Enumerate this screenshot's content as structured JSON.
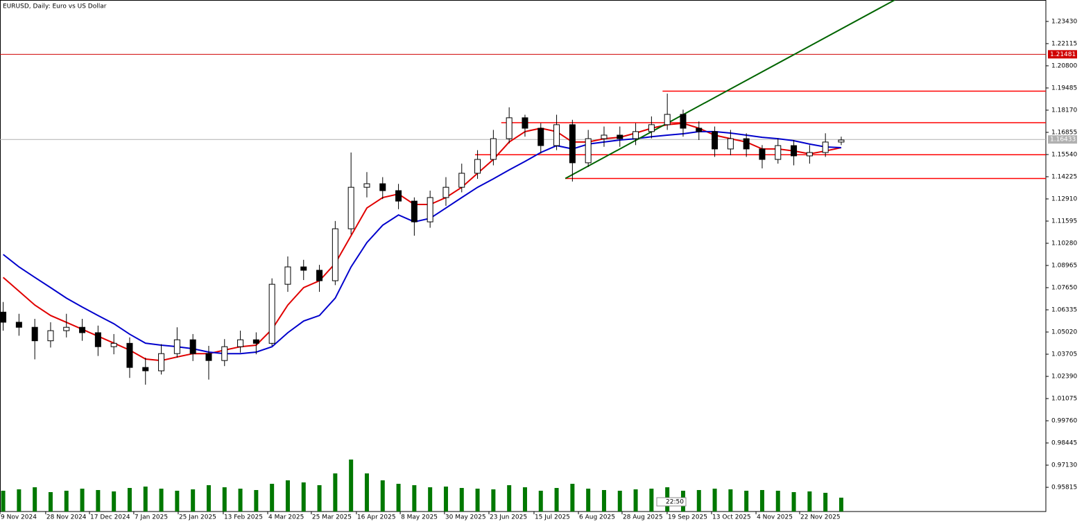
{
  "chart_data": {
    "type": "candlestick",
    "title": "EURUSD, Daily:  Euro vs US Dollar",
    "x": [
      0,
      1,
      2,
      3,
      4,
      5,
      6,
      7,
      8,
      9,
      10,
      11,
      12,
      13,
      14,
      15,
      16,
      17,
      18,
      19,
      20,
      21,
      22,
      23,
      24,
      25,
      26,
      27,
      28,
      29,
      30,
      31,
      32,
      33,
      34,
      35,
      36,
      37,
      38,
      39,
      40,
      41,
      42,
      43,
      44,
      45,
      46,
      47,
      48,
      49,
      50,
      51,
      52,
      53
    ],
    "xlim": [
      -0.2,
      65.94
    ],
    "xticks": [
      {
        "value": -0.2,
        "label": "9 Nov 2024"
      },
      {
        "value": 2.69,
        "label": "28 Nov 2024"
      },
      {
        "value": 5.46,
        "label": "17 Dec 2024"
      },
      {
        "value": 8.26,
        "label": "7 Jan 2025"
      },
      {
        "value": 11.07,
        "label": "25 Jan 2025"
      },
      {
        "value": 13.92,
        "label": "13 Feb 2025"
      },
      {
        "value": 16.73,
        "label": "4 Mar 2025"
      },
      {
        "value": 19.49,
        "label": "25 Mar 2025"
      },
      {
        "value": 22.34,
        "label": "16 Apr 2025"
      },
      {
        "value": 25.11,
        "label": "8 May 2025"
      },
      {
        "value": 27.91,
        "label": "30 May 2025"
      },
      {
        "value": 30.72,
        "label": "23 Jun 2025"
      },
      {
        "value": 33.57,
        "label": "15 Jul 2025"
      },
      {
        "value": 36.38,
        "label": "6 Aug 2025"
      },
      {
        "value": 39.14,
        "label": "28 Aug 2025"
      },
      {
        "value": 41.99,
        "label": "19 Sep 2025"
      },
      {
        "value": 44.8,
        "label": "13 Oct 2025"
      },
      {
        "value": 47.61,
        "label": "4 Nov 2025"
      },
      {
        "value": 50.37,
        "label": "22 Nov 2025"
      }
    ],
    "ylim": [
      0.9438,
      1.247
    ],
    "yticks": [
      {
        "value": 1.2343,
        "label": "1.23430"
      },
      1.22115,
      {
        "value": 1.208,
        "label": "1.20800"
      },
      1.19485,
      {
        "value": 1.1817,
        "label": "1.18170"
      },
      1.16855,
      {
        "value": 1.1554,
        "label": "1.15540"
      },
      1.14225,
      {
        "value": 1.1291,
        "label": "1.12910"
      },
      1.11595,
      {
        "value": 1.1028,
        "label": "1.10280"
      },
      1.08965,
      {
        "value": 1.0765,
        "label": "1.07650"
      },
      1.06335,
      {
        "value": 1.0502,
        "label": "1.05020"
      },
      1.03705,
      {
        "value": 1.0239,
        "label": "1.02390"
      },
      1.01075,
      {
        "value": 0.9976,
        "label": "0.99760"
      },
      0.98445,
      {
        "value": 0.9713,
        "label": "0.97130"
      },
      0.95815
    ],
    "open": [
      1.062,
      1.056,
      1.053,
      1.045,
      1.051,
      1.053,
      1.0498,
      1.0415,
      1.0435,
      1.0292,
      1.0272,
      1.0374,
      1.0456,
      1.0374,
      1.0333,
      1.0415,
      1.0456,
      1.0435,
      1.0785,
      1.0888,
      1.0868,
      1.0806,
      1.1114,
      1.136,
      1.1381,
      1.134,
      1.1278,
      1.1155,
      1.1299,
      1.136,
      1.1443,
      1.1525,
      1.1648,
      1.1772,
      1.171,
      1.1607,
      1.1731,
      1.1505,
      1.1648,
      1.1669,
      1.1648,
      1.169,
      1.1731,
      1.1792,
      1.171,
      1.169,
      1.1587,
      1.1648,
      1.1587,
      1.1525,
      1.1607,
      1.1546,
      1.1566,
      1.1628
    ],
    "high": [
      1.068,
      1.061,
      1.058,
      1.056,
      1.061,
      1.058,
      1.054,
      1.049,
      1.047,
      1.035,
      1.043,
      1.053,
      1.049,
      1.042,
      1.046,
      1.051,
      1.05,
      1.082,
      1.095,
      1.093,
      1.09,
      1.116,
      1.1566,
      1.145,
      1.142,
      1.138,
      1.13,
      1.134,
      1.142,
      1.15,
      1.158,
      1.17,
      1.1834,
      1.179,
      1.174,
      1.179,
      1.176,
      1.17,
      1.172,
      1.172,
      1.174,
      1.178,
      1.1915,
      1.182,
      1.175,
      1.172,
      1.17,
      1.168,
      1.161,
      1.165,
      1.164,
      1.161,
      1.168,
      1.166
    ],
    "low": [
      1.051,
      1.048,
      1.034,
      1.041,
      1.047,
      1.045,
      1.036,
      1.037,
      1.023,
      1.019,
      1.025,
      1.035,
      1.033,
      1.022,
      1.03,
      1.038,
      1.037,
      1.042,
      1.074,
      1.081,
      1.074,
      1.078,
      1.108,
      1.13,
      1.129,
      1.123,
      1.1073,
      1.112,
      1.125,
      1.133,
      1.141,
      1.149,
      1.162,
      1.166,
      1.156,
      1.158,
      1.1394,
      1.148,
      1.16,
      1.16,
      1.161,
      1.165,
      1.17,
      1.166,
      1.164,
      1.154,
      1.155,
      1.154,
      1.1472,
      1.15,
      1.149,
      1.15,
      1.154,
      1.161
    ],
    "close": [
      1.056,
      1.053,
      1.045,
      1.051,
      1.053,
      1.0498,
      1.0415,
      1.0435,
      1.0292,
      1.0272,
      1.0374,
      1.0456,
      1.0374,
      1.0333,
      1.0415,
      1.0456,
      1.0435,
      1.0785,
      1.0888,
      1.0868,
      1.0806,
      1.1114,
      1.136,
      1.1381,
      1.134,
      1.1278,
      1.1155,
      1.1299,
      1.136,
      1.1443,
      1.1525,
      1.1648,
      1.1772,
      1.171,
      1.1607,
      1.1731,
      1.1505,
      1.1648,
      1.1669,
      1.1648,
      1.169,
      1.1731,
      1.1792,
      1.171,
      1.169,
      1.1587,
      1.1648,
      1.1587,
      1.1525,
      1.1607,
      1.1546,
      1.1566,
      1.1628,
      1.164
    ],
    "volume": {
      "color": "#007800",
      "values": [
        30,
        32,
        35,
        28,
        30,
        33,
        31,
        29,
        34,
        36,
        33,
        30,
        32,
        38,
        35,
        33,
        31,
        40,
        45,
        42,
        38,
        55,
        75,
        55,
        45,
        40,
        38,
        35,
        36,
        34,
        33,
        32,
        38,
        35,
        30,
        34,
        40,
        33,
        31,
        30,
        32,
        33,
        35,
        30,
        31,
        33,
        32,
        30,
        31,
        30,
        28,
        29,
        27,
        20
      ]
    },
    "series": [
      {
        "color": "#e00000",
        "values": [
          1.0826,
          1.0744,
          1.0662,
          1.06,
          1.0559,
          1.0518,
          1.0477,
          1.0436,
          1.0395,
          1.0342,
          1.0333,
          1.0354,
          1.0374,
          1.0374,
          1.0395,
          1.0415,
          1.0424,
          1.0518,
          1.0662,
          1.0765,
          1.0806,
          1.0909,
          1.1073,
          1.1237,
          1.1299,
          1.132,
          1.1258,
          1.1258,
          1.1299,
          1.136,
          1.1443,
          1.1525,
          1.1628,
          1.169,
          1.171,
          1.169,
          1.1628,
          1.1628,
          1.1648,
          1.1656,
          1.1681,
          1.171,
          1.1731,
          1.1739,
          1.171,
          1.1669,
          1.1648,
          1.1628,
          1.1587,
          1.1587,
          1.1575,
          1.1558,
          1.1575,
          1.1595
        ]
      },
      {
        "color": "#0000cc",
        "values": [
          1.0962,
          1.0888,
          1.0826,
          1.0765,
          1.0703,
          1.065,
          1.06,
          1.0551,
          1.0489,
          1.0436,
          1.0424,
          1.0415,
          1.0403,
          1.0383,
          1.0374,
          1.0374,
          1.0383,
          1.0415,
          1.0498,
          1.0567,
          1.06,
          1.0703,
          1.0888,
          1.1032,
          1.1135,
          1.1196,
          1.1155,
          1.1176,
          1.1237,
          1.1299,
          1.136,
          1.141,
          1.1463,
          1.1513,
          1.1566,
          1.1607,
          1.1587,
          1.1616,
          1.1628,
          1.164,
          1.1648,
          1.166,
          1.1669,
          1.1677,
          1.169,
          1.169,
          1.1681,
          1.1669,
          1.1656,
          1.1648,
          1.1636,
          1.1616,
          1.1599,
          1.1595
        ]
      }
    ],
    "levels": {
      "color": "#ff0000",
      "lines": [
        {
          "value": 1.193,
          "from": 41.7
        },
        {
          "value": 1.1743,
          "from": 31.5
        },
        {
          "value": 1.1553,
          "from": 29.84
        },
        {
          "value": 1.1412,
          "from": 35.55
        }
      ]
    },
    "alert_line": {
      "color": "#d00000",
      "value": 1.21481
    },
    "price_line": {
      "color": "#b0b0b0",
      "value": 1.16433
    },
    "trendline": {
      "color": "#006400",
      "x": [
        35.55,
        56.38
      ],
      "y": [
        1.1412,
        1.247
      ]
    },
    "time_label": "22:50"
  }
}
